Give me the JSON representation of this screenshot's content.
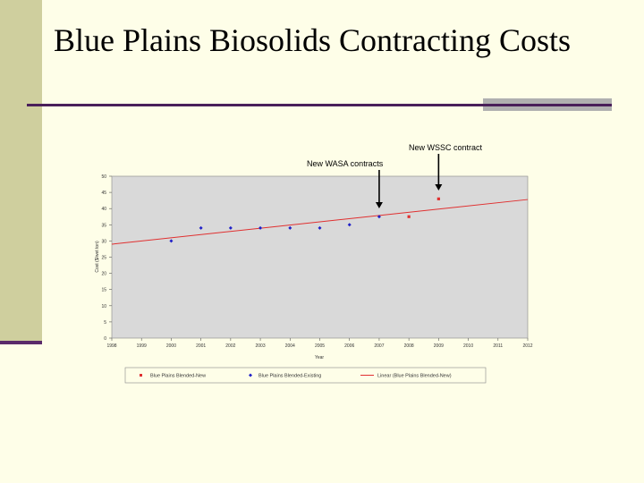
{
  "slide": {
    "title": "Blue Plains Biosolids Contracting Costs"
  },
  "annotations": {
    "wasa_label": "New WASA contracts",
    "wssc_label": "New WSSC contract"
  },
  "colors": {
    "plot_bg": "#d9d9d9",
    "new_series": "#e03030",
    "existing_series": "#2020c8",
    "trend": "#e03030"
  },
  "chart_data": {
    "type": "scatter",
    "title": "",
    "xlabel": "Year",
    "ylabel": "Cost ($/wet ton)",
    "xlim": [
      1998,
      2012
    ],
    "ylim": [
      0,
      50
    ],
    "x_ticks": [
      1998,
      1999,
      2000,
      2001,
      2002,
      2003,
      2004,
      2005,
      2006,
      2007,
      2008,
      2009,
      2010,
      2011,
      2012
    ],
    "y_ticks": [
      0,
      5,
      10,
      15,
      20,
      25,
      30,
      35,
      40,
      45,
      50
    ],
    "series": [
      {
        "name": "Blue Plains Blended-New",
        "marker": "square",
        "points": [
          [
            2008,
            37.5
          ],
          [
            2009,
            43
          ]
        ]
      },
      {
        "name": "Blue Plains Blended-Existing",
        "marker": "diamond",
        "points": [
          [
            2000,
            30
          ],
          [
            2001,
            34
          ],
          [
            2002,
            34
          ],
          [
            2003,
            34
          ],
          [
            2004,
            34
          ],
          [
            2005,
            34
          ],
          [
            2006,
            35
          ],
          [
            2007,
            37.5
          ]
        ]
      }
    ],
    "trendline": {
      "name": "Linear (Blue Plains Blended-New)",
      "start": [
        1998,
        29
      ],
      "end": [
        2012,
        42.8
      ]
    },
    "arrows": [
      {
        "year": 2007,
        "label_key": "wasa"
      },
      {
        "year": 2009,
        "label_key": "wssc"
      }
    ],
    "legend_position": "bottom"
  }
}
